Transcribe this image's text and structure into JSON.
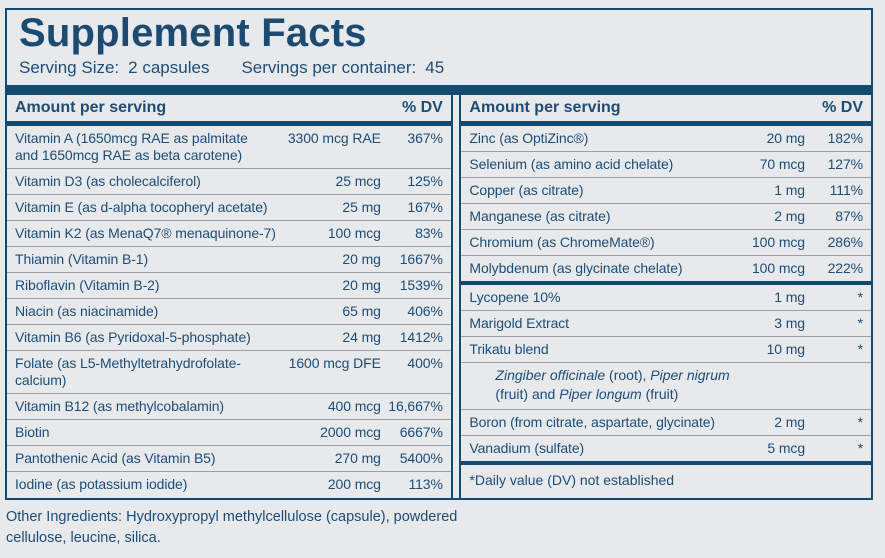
{
  "label": {
    "title": "Supplement Facts",
    "serving": {
      "size_label": "Serving Size:",
      "size_value": "2 capsules",
      "container_label": "Servings per container:",
      "container_value": "45"
    }
  },
  "left_table": {
    "header": {
      "amount": "Amount per serving",
      "dv": "% DV"
    },
    "rows": [
      {
        "name": "Vitamin A (1650mcg RAE as palmitate",
        "name2": "and 1650mcg RAE as beta carotene)",
        "amount": "3300 mcg RAE",
        "dv": "367%"
      },
      {
        "name": "Vitamin D3 (as cholecalciferol)",
        "amount": "25 mcg",
        "dv": "125%"
      },
      {
        "name": "Vitamin E (as d-alpha tocopheryl acetate)",
        "amount": "25 mg",
        "dv": "167%"
      },
      {
        "name": "Vitamin K2 (as MenaQ7® menaquinone-7)",
        "amount": "100 mcg",
        "dv": "83%"
      },
      {
        "name": "Thiamin (Vitamin B-1)",
        "amount": "20 mg",
        "dv": "1667%"
      },
      {
        "name": "Riboflavin (Vitamin B-2)",
        "amount": "20 mg",
        "dv": "1539%"
      },
      {
        "name": "Niacin (as niacinamide)",
        "amount": "65 mg",
        "dv": "406%"
      },
      {
        "name": "Vitamin B6 (as Pyridoxal-5-phosphate)",
        "amount": "24 mg",
        "dv": "1412%"
      },
      {
        "name": "Folate (as L5-Methyltetrahydrofolate-",
        "name2": "calcium)",
        "amount": "1600 mcg DFE",
        "dv": "400%"
      },
      {
        "name": "Vitamin B12 (as methylcobalamin)",
        "amount": "400 mcg",
        "dv": "16,667%"
      },
      {
        "name": "Biotin",
        "amount": "2000 mcg",
        "dv": "6667%"
      },
      {
        "name": "Pantothenic Acid (as Vitamin B5)",
        "amount": "270 mg",
        "dv": "5400%"
      },
      {
        "name": "Iodine (as potassium iodide)",
        "amount": "200 mcg",
        "dv": "113%"
      }
    ]
  },
  "right_table": {
    "header": {
      "amount": "Amount per serving",
      "dv": "% DV"
    },
    "mineral_rows": [
      {
        "name": "Zinc (as OptiZinc®)",
        "amount": "20 mg",
        "dv": "182%"
      },
      {
        "name": "Selenium (as amino acid chelate)",
        "amount": "70 mcg",
        "dv": "127%"
      },
      {
        "name": "Copper (as citrate)",
        "amount": "1 mg",
        "dv": "111%"
      },
      {
        "name": "Manganese (as citrate)",
        "amount": "2 mg",
        "dv": "87%"
      },
      {
        "name": "Chromium (as ChromeMate®)",
        "amount": "100 mcg",
        "dv": "286%"
      },
      {
        "name": "Molybdenum (as glycinate chelate)",
        "amount": "100 mcg",
        "dv": "222%"
      }
    ],
    "botanical_rows": [
      {
        "name": "Lycopene 10%",
        "amount": "1 mg",
        "dv": "*"
      },
      {
        "name": "Marigold Extract",
        "amount": "3 mg",
        "dv": "*"
      },
      {
        "name": "Trikatu blend",
        "amount": "10 mg",
        "dv": "*"
      },
      {
        "name": "Boron (from citrate, aspartate, glycinate)",
        "amount": "2 mg",
        "dv": "*"
      },
      {
        "name": "Vanadium (sulfate)",
        "amount": "5 mcg",
        "dv": "*"
      }
    ],
    "trikatu_sub": {
      "seg1_italic": "Zingiber officinale",
      "seg2": " (root), ",
      "seg3_italic": "Piper nigrum",
      "seg4": "(fruit) and ",
      "seg5_italic": "Piper longum",
      "seg6": " (fruit)"
    },
    "footnote": "*Daily value (DV) not established"
  },
  "other_ingredients": "Other Ingredients: Hydroxypropyl methylcellulose (capsule), powdered cellulose, leucine, silica.",
  "colors": {
    "navy_bar": "#134a72",
    "text": "#1b4d78",
    "background": "#e8e9ea",
    "separator": "#9aa0a6"
  }
}
